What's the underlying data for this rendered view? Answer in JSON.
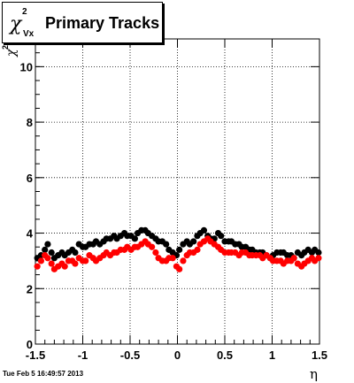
{
  "chart_data": {
    "type": "scatter",
    "title_symbol": "χ",
    "title_sup": "2",
    "title_sub": "Vx",
    "title_text": "Primary Tracks",
    "xlabel": "η",
    "ylabel_symbol": "χ",
    "ylabel_sup": "2",
    "xlim": [
      -1.5,
      1.5
    ],
    "ylim": [
      0,
      11
    ],
    "x_ticks": [
      -1.5,
      -1,
      -0.5,
      0,
      0.5,
      1,
      1.5
    ],
    "x_tick_labels": [
      "-1.5",
      "-1",
      "-0.5",
      "0",
      "0.5",
      "1",
      "1.5"
    ],
    "y_ticks": [
      0,
      2,
      4,
      6,
      8,
      10
    ],
    "y_tick_labels": [
      "0",
      "2",
      "4",
      "6",
      "8",
      "10"
    ],
    "grid": true,
    "series": [
      {
        "color": "#000000",
        "x": [
          -1.48,
          -1.44,
          -1.4,
          -1.37,
          -1.33,
          -1.3,
          -1.26,
          -1.22,
          -1.19,
          -1.15,
          -1.11,
          -1.08,
          -1.04,
          -1.0,
          -0.97,
          -0.93,
          -0.89,
          -0.86,
          -0.82,
          -0.78,
          -0.75,
          -0.71,
          -0.67,
          -0.64,
          -0.6,
          -0.56,
          -0.53,
          -0.49,
          -0.45,
          -0.42,
          -0.38,
          -0.34,
          -0.31,
          -0.27,
          -0.23,
          -0.2,
          -0.16,
          -0.12,
          -0.09,
          -0.05,
          -0.01,
          0.02,
          0.06,
          0.1,
          0.13,
          0.17,
          0.21,
          0.24,
          0.28,
          0.32,
          0.35,
          0.39,
          0.43,
          0.46,
          0.5,
          0.54,
          0.57,
          0.61,
          0.65,
          0.68,
          0.72,
          0.76,
          0.79,
          0.83,
          0.87,
          0.9,
          0.94,
          0.98,
          1.01,
          1.05,
          1.09,
          1.12,
          1.16,
          1.2,
          1.23,
          1.27,
          1.31,
          1.34,
          1.38,
          1.42,
          1.45,
          1.49
        ],
        "y": [
          3.1,
          3.2,
          3.4,
          3.6,
          3.3,
          3.1,
          3.2,
          3.3,
          3.2,
          3.3,
          3.4,
          3.3,
          3.6,
          3.5,
          3.5,
          3.6,
          3.6,
          3.7,
          3.6,
          3.7,
          3.8,
          3.8,
          3.9,
          3.8,
          3.9,
          4.0,
          3.9,
          3.9,
          3.8,
          4.0,
          4.1,
          4.1,
          4.0,
          3.9,
          3.8,
          3.7,
          3.7,
          3.6,
          3.4,
          3.3,
          3.2,
          3.4,
          3.6,
          3.7,
          3.6,
          3.7,
          3.9,
          4.0,
          4.1,
          3.9,
          3.8,
          3.8,
          4.0,
          3.9,
          3.7,
          3.7,
          3.7,
          3.6,
          3.6,
          3.5,
          3.5,
          3.4,
          3.4,
          3.3,
          3.3,
          3.3,
          3.2,
          3.1,
          3.2,
          3.3,
          3.3,
          3.3,
          3.2,
          3.2,
          3.1,
          3.3,
          3.2,
          3.3,
          3.4,
          3.3,
          3.4,
          3.3
        ]
      },
      {
        "color": "#ff0000",
        "x": [
          -1.48,
          -1.44,
          -1.4,
          -1.37,
          -1.33,
          -1.3,
          -1.26,
          -1.22,
          -1.19,
          -1.15,
          -1.11,
          -1.08,
          -1.04,
          -1.0,
          -0.97,
          -0.93,
          -0.89,
          -0.86,
          -0.82,
          -0.78,
          -0.75,
          -0.71,
          -0.67,
          -0.64,
          -0.6,
          -0.56,
          -0.53,
          -0.49,
          -0.45,
          -0.42,
          -0.38,
          -0.34,
          -0.31,
          -0.27,
          -0.23,
          -0.2,
          -0.16,
          -0.12,
          -0.09,
          -0.05,
          -0.01,
          0.02,
          0.06,
          0.1,
          0.13,
          0.17,
          0.21,
          0.24,
          0.28,
          0.32,
          0.35,
          0.39,
          0.43,
          0.46,
          0.5,
          0.54,
          0.57,
          0.61,
          0.65,
          0.68,
          0.72,
          0.76,
          0.79,
          0.83,
          0.87,
          0.9,
          0.94,
          0.98,
          1.01,
          1.05,
          1.09,
          1.12,
          1.16,
          1.2,
          1.23,
          1.27,
          1.31,
          1.34,
          1.38,
          1.42,
          1.45,
          1.49
        ],
        "y": [
          2.8,
          3.0,
          3.2,
          3.1,
          2.9,
          2.7,
          2.8,
          2.9,
          2.8,
          3.0,
          3.0,
          2.9,
          3.1,
          3.0,
          3.0,
          3.2,
          3.1,
          3.0,
          3.1,
          3.2,
          3.3,
          3.2,
          3.3,
          3.3,
          3.4,
          3.4,
          3.5,
          3.4,
          3.5,
          3.5,
          3.6,
          3.7,
          3.6,
          3.5,
          3.3,
          3.1,
          3.0,
          3.0,
          3.1,
          3.1,
          2.8,
          2.7,
          3.0,
          3.2,
          3.3,
          3.3,
          3.4,
          3.6,
          3.7,
          3.8,
          3.7,
          3.6,
          3.5,
          3.4,
          3.3,
          3.3,
          3.3,
          3.3,
          3.2,
          3.3,
          3.3,
          3.2,
          3.2,
          3.2,
          3.2,
          3.1,
          3.2,
          3.1,
          3.0,
          3.0,
          3.0,
          2.9,
          3.0,
          3.0,
          3.1,
          2.9,
          2.8,
          2.9,
          3.0,
          3.1,
          3.0,
          3.1
        ]
      }
    ]
  },
  "footer": {
    "timestamp": "Tue Feb  5 16:49:57 2013"
  }
}
